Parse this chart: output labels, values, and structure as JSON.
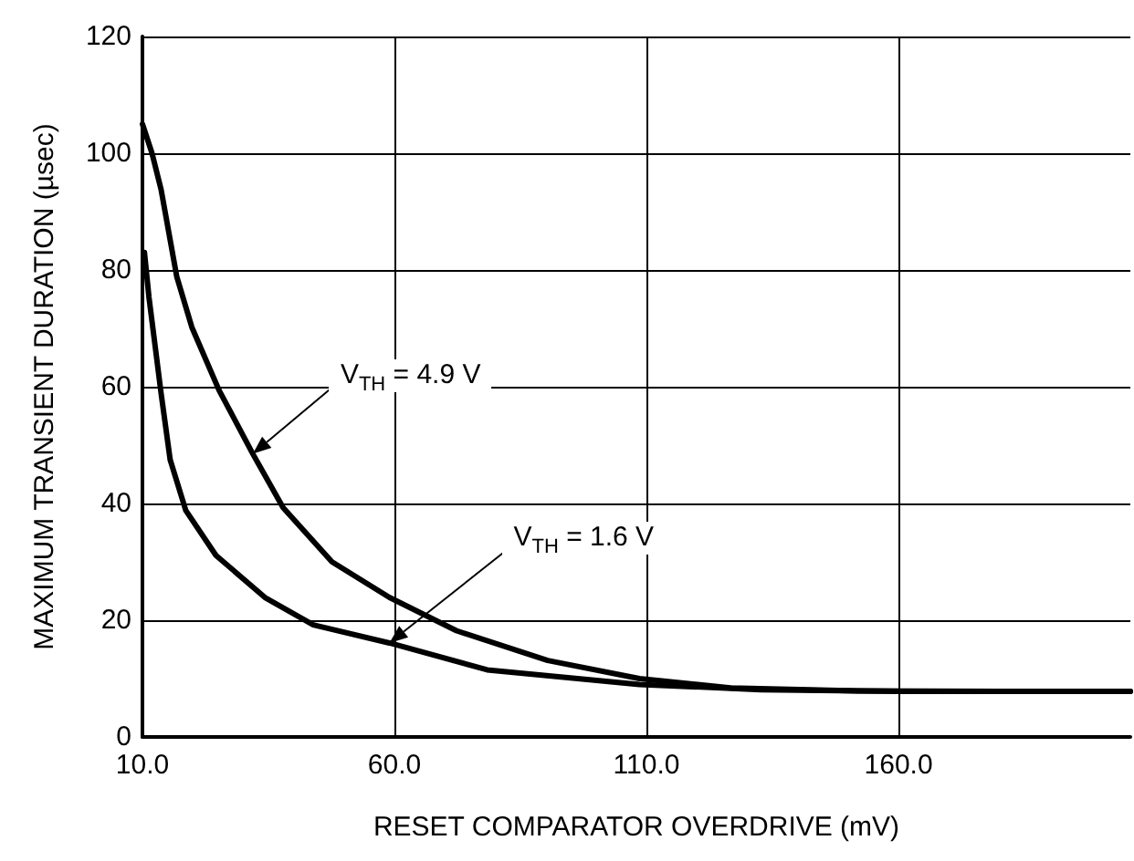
{
  "chart_data": {
    "type": "line",
    "xlabel": "RESET COMPARATOR OVERDRIVE (mV)",
    "ylabel": "MAXIMUM TRANSIENT DURATION (µsec)",
    "xlim": [
      10,
      206
    ],
    "xticks": [
      {
        "value": 10,
        "label": "10.0"
      },
      {
        "value": 60,
        "label": "60.0"
      },
      {
        "value": 110,
        "label": "110.0"
      },
      {
        "value": 160,
        "label": "160.0"
      }
    ],
    "ylim": [
      0,
      120
    ],
    "yticks": [
      0,
      20,
      40,
      60,
      80,
      100,
      120
    ],
    "grid": true,
    "marker": "none",
    "line_style": "solid",
    "series": [
      {
        "color": "#000000",
        "x": [
          10,
          11.9,
          13.7,
          16.8,
          19.8,
          25.2,
          31.9,
          37.9,
          47.6,
          59,
          72.3,
          90.4,
          108.6,
          126.7,
          152,
          180,
          206
        ],
        "values": [
          105,
          100,
          93.8,
          78.9,
          70.2,
          59.4,
          48.5,
          39.3,
          30,
          23.9,
          18.2,
          13.1,
          10,
          8.4,
          7.9,
          7.8,
          7.8
        ]
      },
      {
        "color": "#000000",
        "x": [
          10.4,
          11.3,
          13.7,
          15.5,
          18.6,
          24.6,
          34.3,
          43.9,
          59,
          78.4,
          108.6,
          132.7,
          160,
          180,
          206
        ],
        "values": [
          83,
          75.3,
          58.9,
          47.5,
          38.8,
          31.1,
          23.9,
          19.2,
          16.1,
          11.5,
          9,
          8.1,
          7.8,
          7.8,
          7.8
        ]
      }
    ],
    "annotations": [
      "V$_{TH}$ = 4.9 V",
      "V$_{TH}$ = 1.6 V"
    ]
  }
}
